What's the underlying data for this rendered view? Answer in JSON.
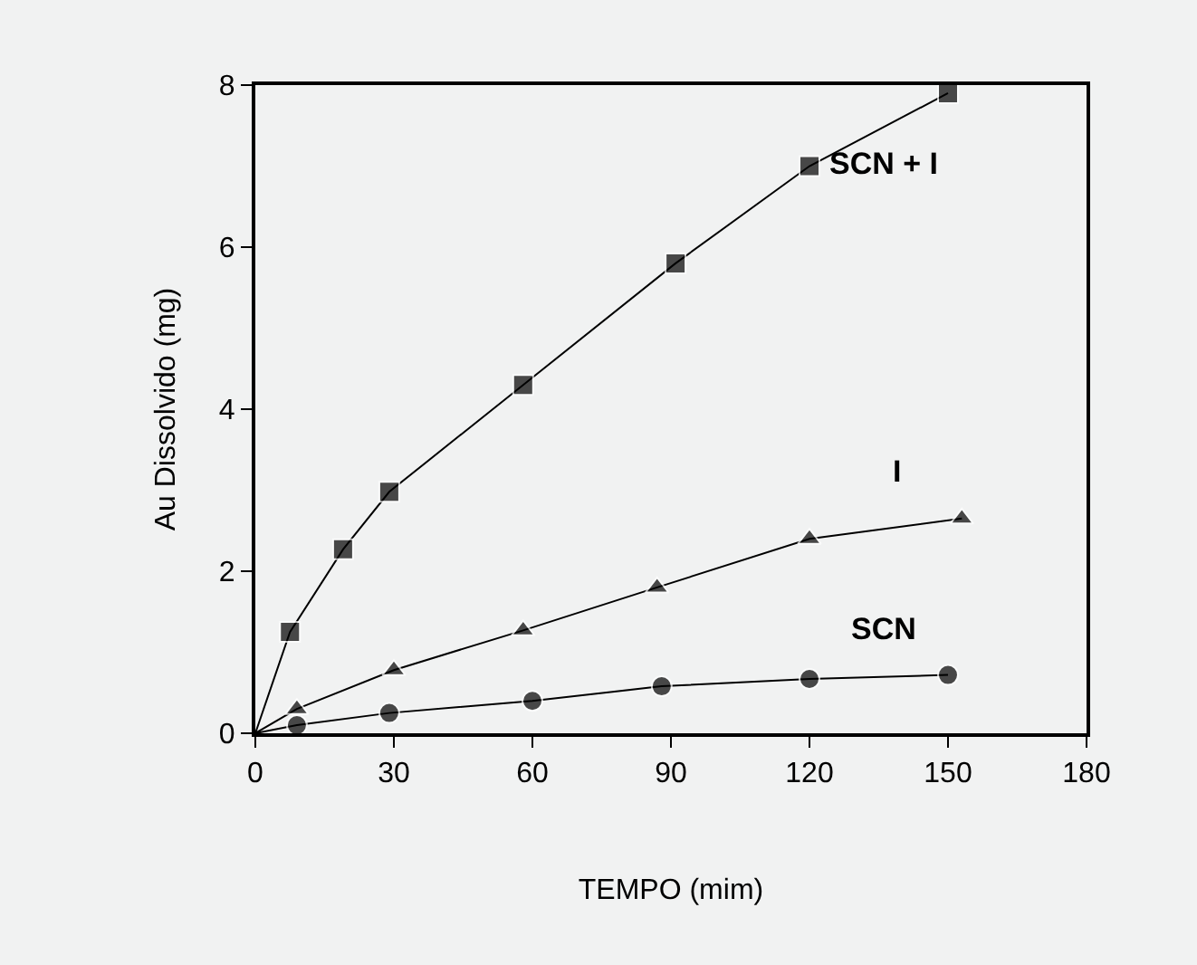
{
  "chart_data": {
    "type": "line",
    "xlabel": "TEMPO (mim)",
    "ylabel": "Au Dissolvido (mg)",
    "xlim": [
      0,
      180
    ],
    "xticks": [
      0,
      30,
      60,
      90,
      120,
      150,
      180
    ],
    "ylim": [
      0,
      8
    ],
    "yticks": [
      0,
      2,
      4,
      6,
      8
    ],
    "grid": false,
    "legend": false,
    "series": [
      {
        "name": "SCN + I",
        "color": "#000000",
        "marker": "square",
        "x": [
          0,
          7.5,
          19,
          29,
          58,
          91,
          120,
          150
        ],
        "values": [
          0,
          1.25,
          2.27,
          2.98,
          4.3,
          5.8,
          7.0,
          7.9
        ]
      },
      {
        "name": "I",
        "color": "#000000",
        "marker": "triangle",
        "x": [
          0,
          9,
          30,
          58,
          87,
          120,
          153
        ],
        "values": [
          0,
          0.3,
          0.78,
          1.27,
          1.8,
          2.4,
          2.65
        ]
      },
      {
        "name": "SCN",
        "color": "#000000",
        "marker": "circle",
        "x": [
          0,
          9,
          29,
          60,
          88,
          120,
          150
        ],
        "values": [
          0,
          0.1,
          0.25,
          0.4,
          0.58,
          0.67,
          0.72
        ]
      }
    ]
  }
}
